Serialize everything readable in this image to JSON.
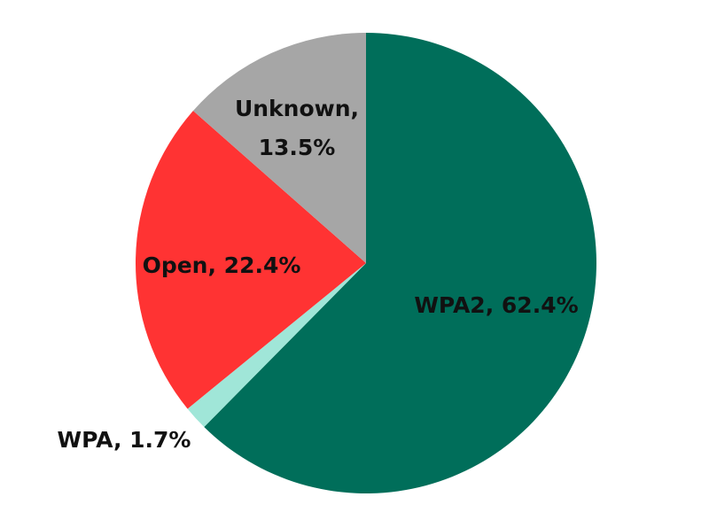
{
  "chart_data": {
    "type": "pie",
    "values": [
      62.4,
      1.7,
      22.4,
      13.5
    ],
    "value_labels": [
      "WPA2, 62.4%",
      "WPA, 1.7%",
      "Open, 22.4%",
      "Unknown, 13.5%"
    ],
    "colors": [
      "#006e5a",
      "#a0e6d8",
      "#ff3333",
      "#a6a6a6"
    ]
  }
}
